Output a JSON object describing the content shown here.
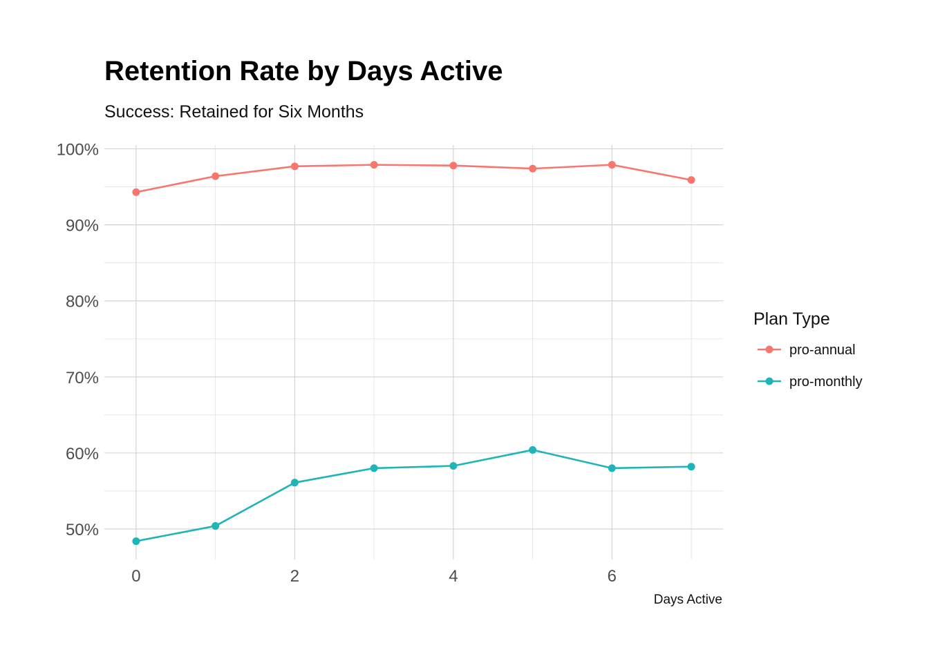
{
  "chart_data": {
    "type": "line",
    "title": "Retention Rate by Days Active",
    "subtitle": "Success: Retained for Six Months",
    "xlabel": "Days Active",
    "ylabel": "",
    "x": [
      0,
      1,
      2,
      3,
      4,
      5,
      6,
      7
    ],
    "xlim": [
      -0.4,
      7.4
    ],
    "ylim": [
      0.46,
      1.005
    ],
    "x_ticks": [
      0,
      2,
      4,
      6
    ],
    "x_tick_labels": [
      "0",
      "2",
      "4",
      "6"
    ],
    "y_ticks": [
      0.5,
      0.6,
      0.7,
      0.8,
      0.9,
      1.0
    ],
    "y_tick_labels": [
      "50%",
      "60%",
      "70%",
      "80%",
      "90%",
      "100%"
    ],
    "grid": true,
    "legend": {
      "title": "Plan Type",
      "position": "right"
    },
    "series": [
      {
        "name": "pro-annual",
        "color": "#F8766D",
        "values": [
          0.943,
          0.964,
          0.977,
          0.979,
          0.978,
          0.974,
          0.979,
          0.959
        ]
      },
      {
        "name": "pro-monthly",
        "color": "#1FB5B8",
        "values": [
          0.484,
          0.504,
          0.561,
          0.58,
          0.583,
          0.604,
          0.58,
          0.582
        ]
      }
    ]
  }
}
